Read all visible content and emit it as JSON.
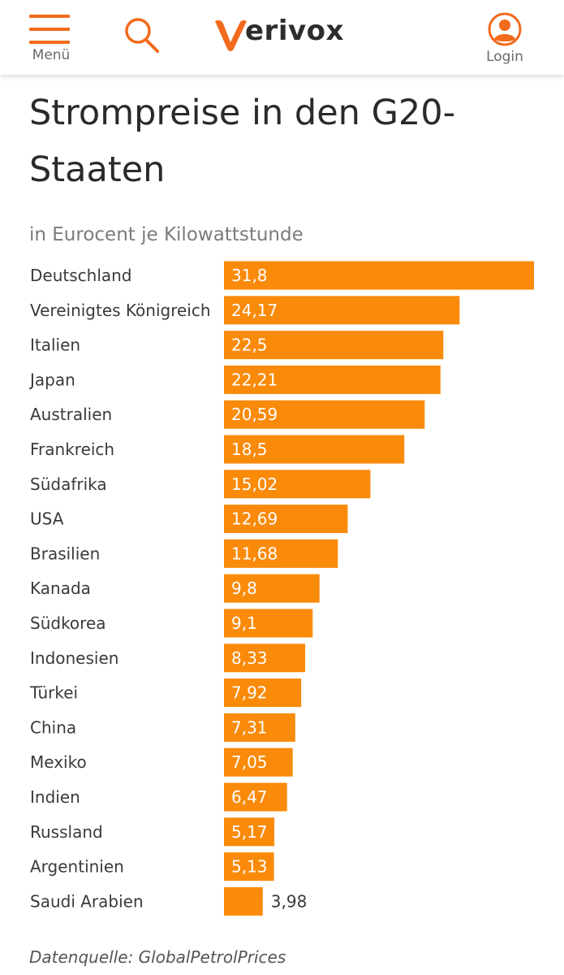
{
  "header": {
    "menu_label": "Menü",
    "login_label": "Login",
    "logo_text": "erivox",
    "accent_color": "#f26a1b"
  },
  "chart_data": {
    "type": "bar",
    "orientation": "horizontal",
    "title": "Strompreise in den G20-Staaten",
    "subtitle": "in Eurocent je Kilowattstunde",
    "source": "Datenquelle: GlobalPetrolPrices",
    "bar_color": "#fa8a0a",
    "categories": [
      "Deutschland",
      "Vereinigtes Königreich",
      "Italien",
      "Japan",
      "Australien",
      "Frankreich",
      "Südafrika",
      "USA",
      "Brasilien",
      "Kanada",
      "Südkorea",
      "Indonesien",
      "Türkei",
      "China",
      "Mexiko",
      "Indien",
      "Russland",
      "Argentinien",
      "Saudi Arabien"
    ],
    "values": [
      31.8,
      24.17,
      22.5,
      22.21,
      20.59,
      18.5,
      15.02,
      12.69,
      11.68,
      9.8,
      9.1,
      8.33,
      7.92,
      7.31,
      7.05,
      6.47,
      5.17,
      5.13,
      3.98
    ],
    "value_labels": [
      "31,8",
      "24,17",
      "22,5",
      "22,21",
      "20,59",
      "18,5",
      "15,02",
      "12,69",
      "11,68",
      "9,8",
      "9,1",
      "8,33",
      "7,92",
      "7,31",
      "7,05",
      "6,47",
      "5,17",
      "5,13",
      "3,98"
    ],
    "xlim": [
      0,
      31.8
    ],
    "grid": false,
    "legend": "none"
  }
}
